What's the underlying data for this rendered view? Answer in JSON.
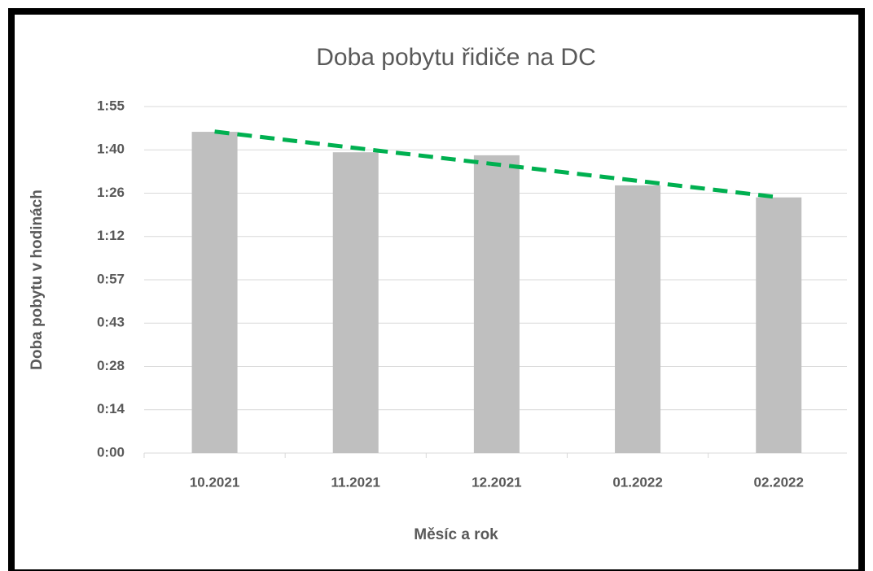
{
  "chart_data": {
    "type": "bar",
    "title": "Doba pobytu řidiče na DC",
    "x_label": "Měsíc a rok",
    "y_label": "Doba pobytu v hodinách",
    "categories": [
      "10.2021",
      "11.2021",
      "12.2021",
      "01.2022",
      "02.2022"
    ],
    "values": [
      106.8,
      100,
      99,
      89,
      85
    ],
    "color": "#bfbfbf",
    "ylim": [
      0,
      115.2
    ],
    "yticks": [
      {
        "value": 0,
        "label": "0:00"
      },
      {
        "value": 14.4,
        "label": "0:14"
      },
      {
        "value": 28.8,
        "label": "0:28"
      },
      {
        "value": 43.2,
        "label": "0:43"
      },
      {
        "value": 57.6,
        "label": "0:57"
      },
      {
        "value": 72,
        "label": "1:12"
      },
      {
        "value": 86.4,
        "label": "1:26"
      },
      {
        "value": 100.8,
        "label": "1:40"
      },
      {
        "value": 115.2,
        "label": "1:55"
      }
    ],
    "grid": true,
    "trendline": "linear",
    "trendline_color": "#00b050"
  }
}
